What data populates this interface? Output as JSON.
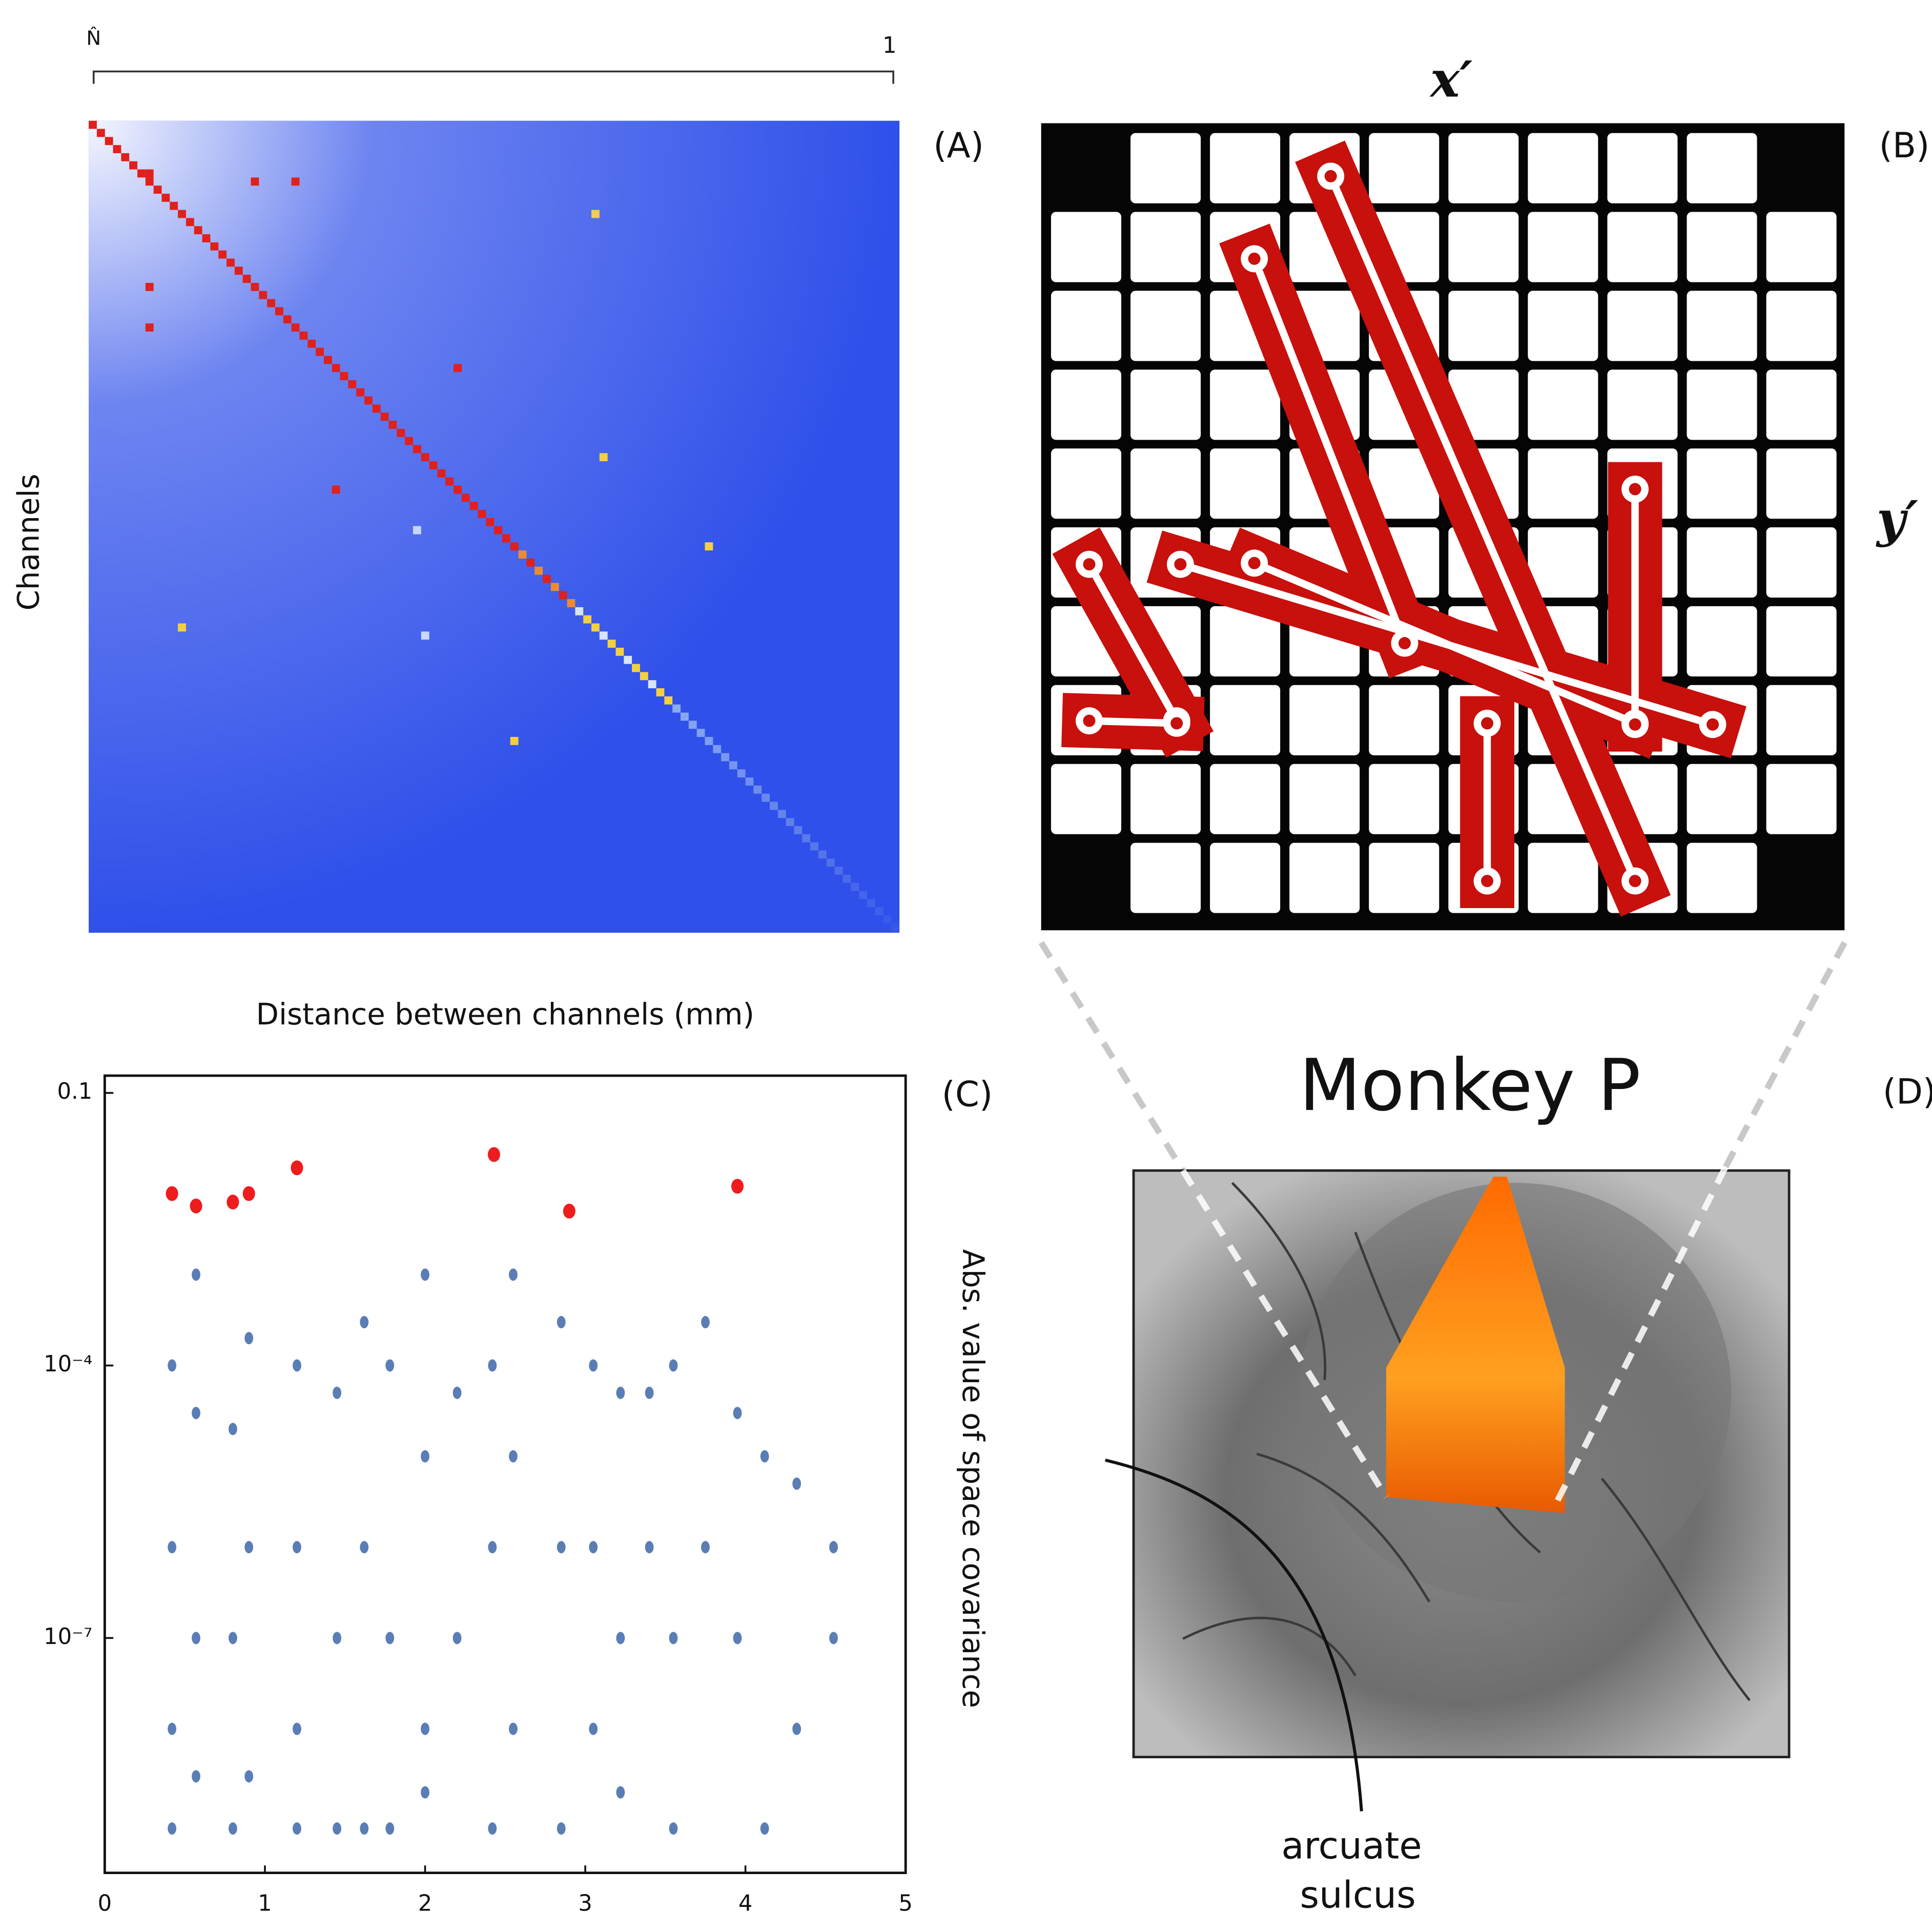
{
  "chart_data": {
    "type": "scatter",
    "panel": "(C)",
    "xlabel": "Distance between channels (mm)",
    "ylabel": "Abs. value of space covariance",
    "xlim": [
      0,
      5
    ],
    "xticks": [
      0,
      1,
      2,
      3,
      4,
      5
    ],
    "ylim": [
      2.6e-10,
      0.155
    ],
    "yscale": "log",
    "yticks": [
      0.1,
      {
        "value": 0.0001,
        "label": "10⁻⁴"
      },
      {
        "value": 1e-07,
        "label": "10⁻⁷"
      }
    ],
    "series": [
      {
        "color": "#5b7db5",
        "x": [
          0.42,
          0.42,
          0.42,
          0.42,
          0.57,
          0.57,
          0.57,
          0.57,
          0.8,
          0.8,
          0.8,
          0.9,
          0.9,
          0.9,
          1.2,
          1.2,
          1.2,
          1.2,
          1.45,
          1.45,
          1.45,
          1.62,
          1.62,
          1.62,
          1.78,
          1.78,
          1.78,
          2.0,
          2.0,
          2.0,
          2.0,
          2.2,
          2.2,
          2.42,
          2.42,
          2.42,
          2.55,
          2.55,
          2.55,
          2.85,
          2.85,
          2.85,
          3.05,
          3.05,
          3.05,
          3.22,
          3.22,
          3.22,
          3.4,
          3.4,
          3.55,
          3.55,
          3.55,
          3.75,
          3.75,
          3.95,
          3.95,
          4.12,
          4.12,
          4.32,
          4.32,
          4.55,
          4.55
        ],
        "values": [
          0.0001,
          1e-06,
          1e-08,
          8e-10,
          0.001,
          3e-05,
          1e-07,
          3e-09,
          2e-05,
          1e-07,
          8e-10,
          0.0002,
          1e-06,
          3e-09,
          0.0001,
          1e-06,
          1e-08,
          8e-10,
          5e-05,
          1e-07,
          8e-10,
          0.0003,
          1e-06,
          8e-10,
          0.0001,
          1e-07,
          8e-10,
          0.001,
          1e-05,
          1e-08,
          2e-09,
          5e-05,
          1e-07,
          0.0001,
          1e-06,
          8e-10,
          0.001,
          1e-05,
          1e-08,
          0.0003,
          1e-06,
          8e-10,
          0.0001,
          1e-06,
          1e-08,
          5e-05,
          1e-07,
          2e-09,
          5e-05,
          1e-06,
          0.0001,
          1e-07,
          8e-10,
          0.0003,
          1e-06,
          3e-05,
          1e-07,
          1e-05,
          8e-10,
          5e-06,
          1e-08,
          1e-06,
          1e-07
        ]
      },
      {
        "color": "#ee1c1c",
        "x": [
          0.42,
          0.57,
          0.8,
          0.9,
          1.2,
          2.43,
          2.9,
          3.95
        ],
        "values": [
          0.0078,
          0.0057,
          0.0063,
          0.0078,
          0.015,
          0.021,
          0.005,
          0.0094
        ]
      }
    ]
  },
  "heatmap": {
    "panel": "(A)",
    "ylabel": "Channels",
    "colorbar_labels": [
      "N̂",
      "1"
    ]
  },
  "array_diagram": {
    "panel": "(B)",
    "x_label": "x′",
    "y_label": "y′"
  },
  "photo": {
    "panel": "(D)",
    "title": "Monkey P",
    "annotation": [
      "arcuate",
      "sulcus"
    ]
  }
}
